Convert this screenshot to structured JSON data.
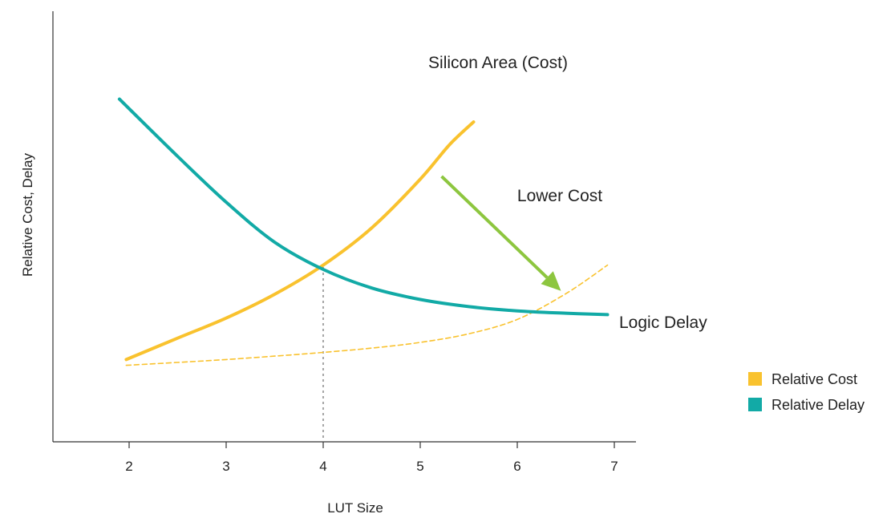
{
  "chart_data": {
    "type": "line",
    "title": "",
    "xlabel": "LUT Size",
    "ylabel": "Relative Cost, Delay",
    "xlim": [
      1.25,
      7.25
    ],
    "ylim": [
      0,
      1
    ],
    "x_ticks": [
      2,
      3,
      4,
      5,
      6,
      7
    ],
    "grid": false,
    "legend_position": "right",
    "series": [
      {
        "name": "Relative Cost",
        "label": "Silicon Area (Cost)",
        "color": "#F9C22E",
        "style": "solid",
        "x": [
          1.97,
          2.5,
          3.0,
          3.5,
          4.0,
          4.5,
          5.0,
          5.3,
          5.55
        ],
        "y": [
          0.19,
          0.265,
          0.335,
          0.418,
          0.52,
          0.65,
          0.82,
          0.94,
          1.02
        ]
      },
      {
        "name": "Relative Delay",
        "label": "Logic Delay",
        "color": "#12AAA6",
        "style": "solid",
        "x": [
          1.9,
          2.5,
          3.0,
          3.5,
          4.0,
          4.5,
          5.0,
          5.5,
          6.0,
          6.5,
          6.93
        ],
        "y": [
          1.1,
          0.9,
          0.74,
          0.6,
          0.505,
          0.44,
          0.4,
          0.375,
          0.36,
          0.352,
          0.347
        ]
      },
      {
        "name": "Lower Cost",
        "color": "#F9C22E",
        "style": "dashed",
        "x": [
          1.97,
          2.5,
          3.0,
          3.5,
          4.0,
          4.5,
          5.0,
          5.5,
          6.0,
          6.5,
          6.93
        ],
        "y": [
          0.17,
          0.18,
          0.19,
          0.202,
          0.215,
          0.23,
          0.25,
          0.28,
          0.33,
          0.42,
          0.52
        ]
      }
    ],
    "markers": [
      {
        "type": "vline",
        "x": 4,
        "color": "#888888",
        "style": "dotted"
      }
    ],
    "annotations": [
      {
        "text": "Silicon Area (Cost)"
      },
      {
        "text": "Lower Cost"
      },
      {
        "text": "Logic Delay"
      }
    ],
    "arrows": [
      {
        "from": [
          5.22,
          0.83
        ],
        "to": [
          6.45,
          0.43
        ],
        "color": "#8DC63F"
      }
    ],
    "legend": [
      {
        "label": "Relative Cost",
        "color": "#F9C22E"
      },
      {
        "label": "Relative Delay",
        "color": "#12AAA6"
      }
    ]
  }
}
